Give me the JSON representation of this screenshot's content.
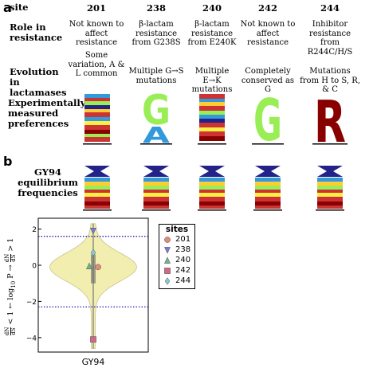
{
  "panel_a": {
    "letter": "a",
    "row_headers": {
      "site": "site",
      "role": "Role in resistance",
      "evolution": "Evolution in lactamases",
      "experimental": "Experimentally measured preferences"
    },
    "columns": [
      {
        "site": "201",
        "role": "Not known to affect resistance",
        "evolution": "Some variation, A & L common"
      },
      {
        "site": "238",
        "role": "β-lactam resistance from G238S",
        "evolution": "Multiple G→S mutations"
      },
      {
        "site": "240",
        "role": "β-lactam resistance from E240K",
        "evolution": "Multiple E→K mutations"
      },
      {
        "site": "242",
        "role": "Not known to affect resistance",
        "evolution": "Completely conserved as G"
      },
      {
        "site": "244",
        "role": "Inhibitor resistance from R244C/H/S",
        "evolution": "Mutations from H to S, R, & C"
      }
    ],
    "logo_letters": {
      "238": [
        "G",
        "A"
      ],
      "242": [
        "G"
      ],
      "244": [
        "R"
      ]
    },
    "colors": {
      "G": "#99ee55",
      "A": "#3399dd",
      "R": "#880000"
    }
  },
  "panel_b": {
    "letter": "b",
    "row_header": "GY94 equilibrium frequencies"
  },
  "chart_data": {
    "type": "violin",
    "x_category": "GY94",
    "ylabel": "dN/dS < 1 ← log10 P → dN/dS > 1",
    "ylabel_parts": {
      "left_frac_num": "dN",
      "left_frac_den": "dS",
      "left_text": " < 1 ← log",
      "sub": "10",
      "mid": " P → ",
      "right_frac_num": "dN",
      "right_frac_den": "dS",
      "right_text": " > 1"
    },
    "ylim": [
      -4.8,
      2.6
    ],
    "yticks": [
      -4,
      -2,
      0,
      2
    ],
    "ytick_labels": [
      "−4",
      "−2",
      "0",
      "2"
    ],
    "threshold_lines": [
      1.6,
      -2.3
    ],
    "violin": {
      "min": -4.6,
      "max": 2.3,
      "median": -0.1,
      "q1": -1.0,
      "q3": 0.6
    },
    "legend": {
      "title": "sites",
      "position": "right",
      "entries": [
        {
          "name": "201",
          "marker": "circle",
          "color": "#e08a7a",
          "value": -0.1
        },
        {
          "name": "238",
          "marker": "triangle-down",
          "color": "#7a7adc",
          "value": 1.9
        },
        {
          "name": "240",
          "marker": "triangle-up",
          "color": "#6fb586",
          "value": -0.05
        },
        {
          "name": "242",
          "marker": "square",
          "color": "#cc6b88",
          "value": -4.1
        },
        {
          "name": "244",
          "marker": "diamond",
          "color": "#88c8d6",
          "value": 0.7
        }
      ]
    }
  }
}
